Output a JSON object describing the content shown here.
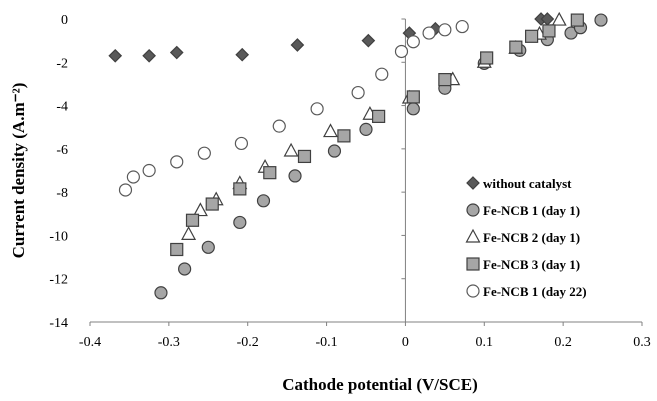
{
  "chart_data": {
    "type": "scatter",
    "title": "",
    "xlabel": "Cathode potential (V/SCE)",
    "ylabel": "Current density (A.m⁻²)",
    "xlim": [
      -0.4,
      0.3
    ],
    "ylim": [
      -14,
      0
    ],
    "xticks": [
      -0.4,
      -0.3,
      -0.2,
      -0.1,
      0,
      0.1,
      0.2,
      0.3
    ],
    "yticks": [
      -14,
      -12,
      -10,
      -8,
      -6,
      -4,
      -2,
      0
    ],
    "xtick_labels": [
      "-0.4",
      "-0.3",
      "-0.2",
      "-0.1",
      "0",
      "0.1",
      "0.2",
      "0.3"
    ],
    "ytick_labels": [
      "-14",
      "-12",
      "-10",
      "-8",
      "-6",
      "-4",
      "-2",
      "0"
    ],
    "grid": false,
    "legend_position": "bottom-right",
    "series": [
      {
        "name": "without catalyst",
        "marker": "diamond",
        "fill": "#595959",
        "stroke": "#404040",
        "x": [
          -0.368,
          -0.325,
          -0.29,
          -0.207,
          -0.137,
          -0.047,
          0.005,
          0.038,
          0.172,
          0.18
        ],
        "y": [
          -1.7,
          -1.7,
          -1.55,
          -1.65,
          -1.2,
          -1.0,
          -0.65,
          -0.45,
          0.0,
          0.0
        ]
      },
      {
        "name": "Fe-NCB 1 (day 1)",
        "marker": "circle",
        "fill": "#a6a6a6",
        "stroke": "#404040",
        "x": [
          -0.31,
          -0.28,
          -0.25,
          -0.21,
          -0.18,
          -0.14,
          -0.09,
          -0.05,
          0.01,
          0.05,
          0.1,
          0.145,
          0.18,
          0.21,
          0.222,
          0.248
        ],
        "y": [
          -12.65,
          -11.55,
          -10.55,
          -9.4,
          -8.4,
          -7.25,
          -6.1,
          -5.1,
          -4.15,
          -3.2,
          -2.05,
          -1.45,
          -0.95,
          -0.65,
          -0.4,
          -0.05
        ]
      },
      {
        "name": "Fe-NCB 2 (day 1)",
        "marker": "triangle",
        "fill": "#ffffff",
        "stroke": "#404040",
        "x": [
          -0.275,
          -0.26,
          -0.24,
          -0.21,
          -0.178,
          -0.145,
          -0.095,
          -0.045,
          0.005,
          0.06,
          0.1,
          0.14,
          0.17,
          0.195
        ],
        "y": [
          -9.95,
          -8.85,
          -8.35,
          -7.6,
          -6.85,
          -6.1,
          -5.2,
          -4.4,
          -3.65,
          -2.8,
          -2.0,
          -1.35,
          -0.7,
          -0.05
        ]
      },
      {
        "name": "Fe-NCB 3 (day 1)",
        "marker": "square",
        "fill": "#a6a6a6",
        "stroke": "#404040",
        "x": [
          -0.29,
          -0.27,
          -0.245,
          -0.21,
          -0.172,
          -0.128,
          -0.078,
          -0.034,
          0.01,
          0.05,
          0.103,
          0.14,
          0.16,
          0.182,
          0.218
        ],
        "y": [
          -10.65,
          -9.3,
          -8.55,
          -7.85,
          -7.1,
          -6.35,
          -5.4,
          -4.5,
          -3.6,
          -2.8,
          -1.8,
          -1.3,
          -0.8,
          -0.55,
          -0.05
        ]
      },
      {
        "name": "Fe-NCB 1 (day 22)",
        "marker": "circle",
        "fill": "#ffffff",
        "stroke": "#595959",
        "x": [
          -0.355,
          -0.345,
          -0.325,
          -0.29,
          -0.255,
          -0.208,
          -0.16,
          -0.112,
          -0.06,
          -0.03,
          -0.005,
          0.01,
          0.03,
          0.05,
          0.072
        ],
        "y": [
          -7.9,
          -7.3,
          -7.0,
          -6.6,
          -6.2,
          -5.75,
          -4.95,
          -4.15,
          -3.4,
          -2.55,
          -1.5,
          -1.05,
          -0.65,
          -0.5,
          -0.35
        ]
      }
    ]
  }
}
